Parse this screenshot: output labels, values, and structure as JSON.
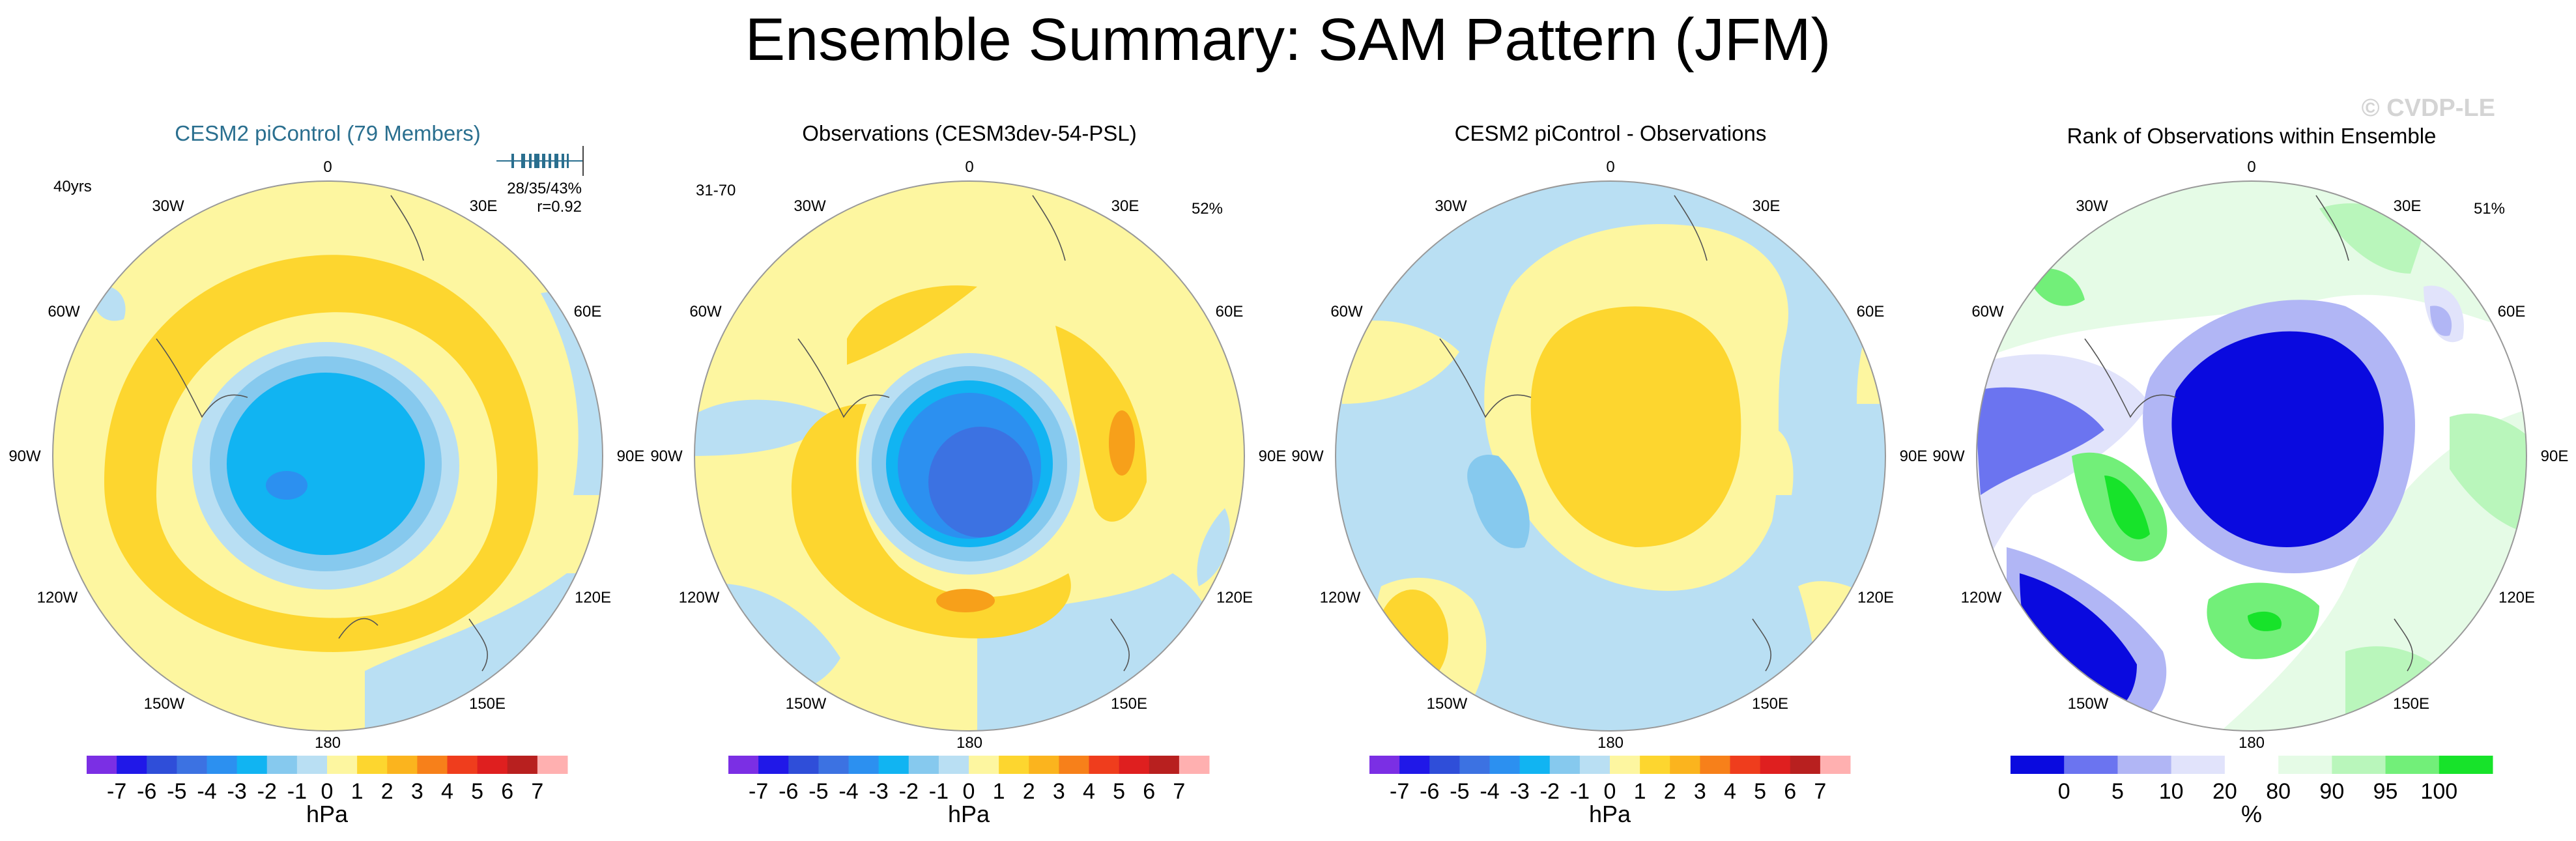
{
  "title": "Ensemble Summary: SAM Pattern (JFM)",
  "watermark": "© CVDP-LE",
  "center_label": "0",
  "meridian_labels": {
    "lon_30w": "30W",
    "lon_30e": "30E",
    "lon_60w": "60W",
    "lon_60e": "60E",
    "lon_90w": "90W",
    "lon_90e": "90E",
    "lon_120w": "120W",
    "lon_120e": "120E",
    "lon_150w": "150W",
    "lon_150e": "150E",
    "lon_180": "180"
  },
  "panels": [
    {
      "title": "CESM2 piControl (79 Members)",
      "title_color": "#2a6f8f",
      "left_note": "40yrs",
      "stats_line1": "28/35/43%",
      "stats_line2": "r=0.92"
    },
    {
      "title": "Observations (CESM3dev-54-PSL)",
      "title_color": "#000000",
      "left_note": "31-70",
      "right_note": "52%"
    },
    {
      "title": "CESM2 piControl - Observations",
      "title_color": "#000000"
    },
    {
      "title": "Rank of Observations within Ensemble",
      "title_color": "#000000",
      "right_note": "51%"
    }
  ],
  "hpa_colorbar": {
    "ticks": [
      "-7",
      "-6",
      "-5",
      "-4",
      "-3",
      "-2",
      "-1",
      "0",
      "1",
      "2",
      "3",
      "4",
      "5",
      "6",
      "7"
    ],
    "units": "hPa",
    "colors": [
      "#7b2fe4",
      "#2018e8",
      "#2f4ed9",
      "#3c72e2",
      "#2c90f0",
      "#11b4f2",
      "#86c9ee",
      "#b9dff3",
      "#fdf6a0",
      "#fdd62f",
      "#fbb41e",
      "#f7801a",
      "#ef3d1d",
      "#df1f1f",
      "#b8201f",
      "#ffb0b0"
    ]
  },
  "rank_colorbar": {
    "ticks": [
      "0",
      "5",
      "10",
      "20",
      "80",
      "90",
      "95",
      "100"
    ],
    "units": "%",
    "colors": [
      "#0a0adf",
      "#6b74f0",
      "#b1b6f5",
      "#e1e3fb",
      "#ffffff",
      "#e5fbe6",
      "#b9f6bb",
      "#72ef79",
      "#17e32a"
    ]
  }
}
